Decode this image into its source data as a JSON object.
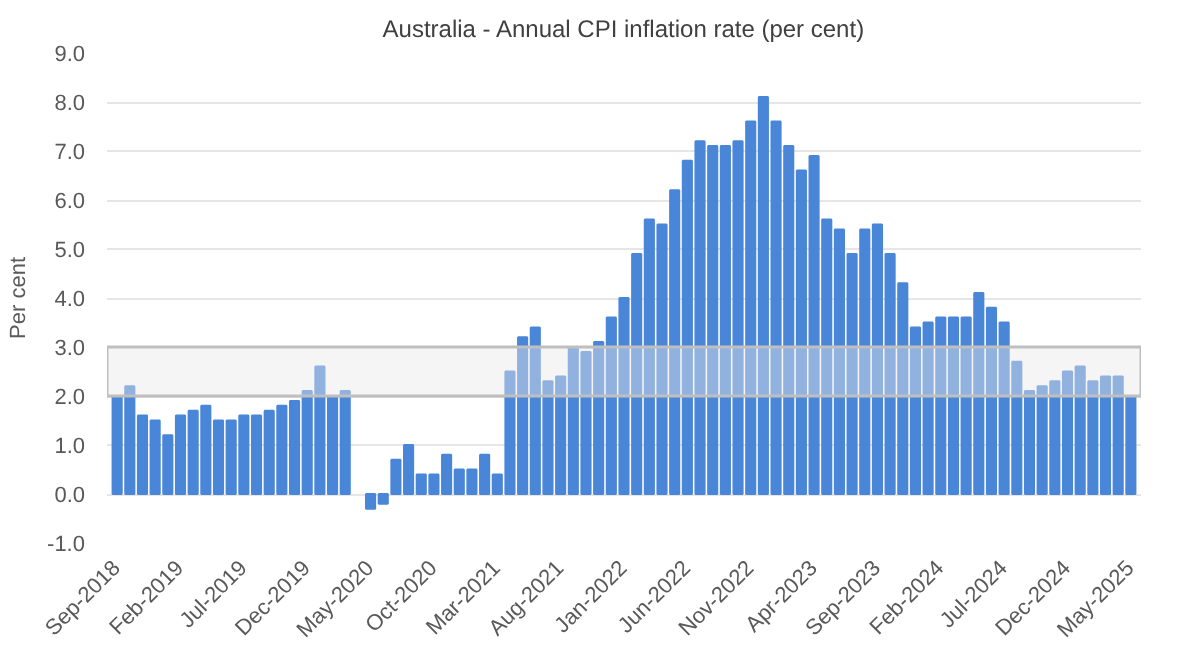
{
  "chart_data": {
    "type": "bar",
    "title": "Australia - Annual CPI inflation rate (per cent)",
    "ylabel": "Per cent",
    "categories": [
      "Sep-2018",
      null,
      null,
      null,
      null,
      "Feb-2019",
      null,
      null,
      null,
      null,
      "Jul-2019",
      null,
      null,
      null,
      null,
      "Dec-2019",
      null,
      null,
      null,
      null,
      "May-2020",
      null,
      null,
      null,
      null,
      "Oct-2020",
      null,
      null,
      null,
      null,
      "Mar-2021",
      null,
      null,
      null,
      null,
      "Aug-2021",
      null,
      null,
      null,
      null,
      "Jan-2022",
      null,
      null,
      null,
      null,
      "Jun-2022",
      null,
      null,
      null,
      null,
      "Nov-2022",
      null,
      null,
      null,
      null,
      "Apr-2023",
      null,
      null,
      null,
      null,
      "Sep-2023",
      null,
      null,
      null,
      null,
      "Feb-2024",
      null,
      null,
      null,
      null,
      "Jul-2024",
      null,
      null,
      null,
      null,
      "Dec-2024",
      null,
      null,
      null,
      null,
      "May-2025"
    ],
    "values": [
      2.0,
      2.2,
      1.6,
      1.5,
      1.2,
      1.6,
      1.7,
      1.8,
      1.5,
      1.5,
      1.6,
      1.6,
      1.7,
      1.8,
      1.9,
      2.1,
      2.6,
      2.0,
      2.1,
      null,
      -0.3,
      -0.2,
      0.7,
      1.0,
      0.4,
      0.4,
      0.8,
      0.5,
      0.5,
      0.8,
      0.4,
      2.5,
      3.2,
      3.4,
      2.3,
      2.4,
      3.0,
      2.9,
      3.1,
      3.6,
      4.0,
      4.9,
      5.6,
      5.5,
      6.2,
      6.8,
      7.2,
      7.1,
      7.1,
      7.2,
      7.6,
      8.1,
      7.6,
      7.1,
      6.6,
      6.9,
      5.6,
      5.4,
      4.9,
      5.4,
      5.5,
      4.9,
      4.3,
      3.4,
      3.5,
      3.6,
      3.6,
      3.6,
      4.1,
      3.8,
      3.5,
      2.7,
      2.1,
      2.2,
      2.3,
      2.5,
      2.6,
      2.3,
      2.4,
      2.4,
      2.0
    ],
    "color": "#4a86d8",
    "ylim": [
      -1.0,
      9.0
    ],
    "yticks": [
      {
        "value": -1,
        "label": "-1.0"
      },
      {
        "value": 0,
        "label": "0.0"
      },
      {
        "value": 1,
        "label": "1.0"
      },
      {
        "value": 2,
        "label": "2.0"
      },
      {
        "value": 3,
        "label": "3.0"
      },
      {
        "value": 4,
        "label": "4.0"
      },
      {
        "value": 5,
        "label": "5.0"
      },
      {
        "value": 6,
        "label": "6.0"
      },
      {
        "value": 7,
        "label": "7.0"
      },
      {
        "value": 8,
        "label": "8.0"
      },
      {
        "value": 9,
        "label": "9.0"
      }
    ],
    "bands": [
      {
        "axis": "y",
        "from": 2,
        "to": 3,
        "color": "#e8e8e8"
      }
    ],
    "grid": "y"
  }
}
